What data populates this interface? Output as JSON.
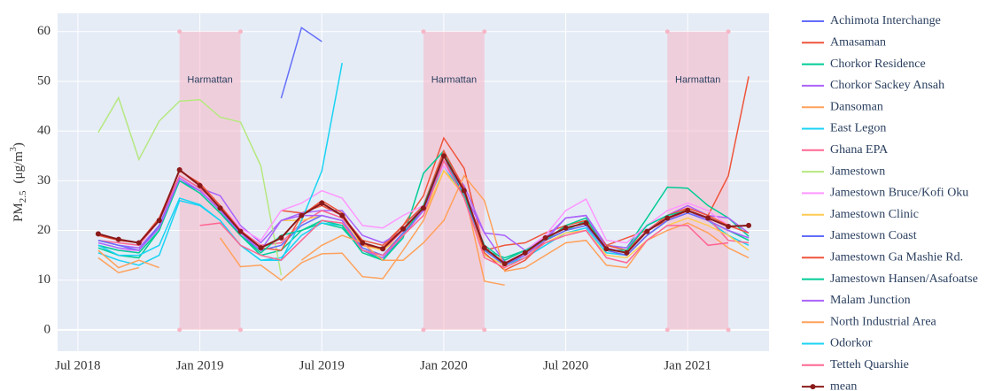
{
  "chart_data": {
    "type": "line",
    "ylabel": [
      "PM",
      "2.5",
      "(μg/m",
      "3",
      ")"
    ],
    "x": [
      "2018-08",
      "2018-09",
      "2018-10",
      "2018-11",
      "2018-12",
      "2019-01",
      "2019-02",
      "2019-03",
      "2019-04",
      "2019-05",
      "2019-06",
      "2019-07",
      "2019-08",
      "2019-09",
      "2019-10",
      "2019-11",
      "2019-12",
      "2020-01",
      "2020-02",
      "2020-03",
      "2020-04",
      "2020-05",
      "2020-06",
      "2020-07",
      "2020-08",
      "2020-09",
      "2020-10",
      "2020-11",
      "2020-12",
      "2021-01",
      "2021-02",
      "2021-03",
      "2021-04"
    ],
    "xlim": [
      "2018-06",
      "2021-05"
    ],
    "xticks": [
      {
        "value": "2018-07",
        "label": "Jul 2018"
      },
      {
        "value": "2019-01",
        "label": "Jan 2019"
      },
      {
        "value": "2019-07",
        "label": "Jul 2019"
      },
      {
        "value": "2020-01",
        "label": "Jan 2020"
      },
      {
        "value": "2020-07",
        "label": "Jul 2020"
      },
      {
        "value": "2021-01",
        "label": "Jan 2021"
      }
    ],
    "ylim": [
      -4.3,
      63.7
    ],
    "yticks": [
      0,
      10,
      20,
      30,
      40,
      50,
      60
    ],
    "grid": true,
    "bands": [
      {
        "label": "Harmattan",
        "start": "2018-12",
        "end": "2019-03",
        "yrange": [
          0,
          60
        ]
      },
      {
        "label": "Harmattan",
        "start": "2019-12",
        "end": "2020-03",
        "yrange": [
          0,
          60
        ]
      },
      {
        "label": "Harmattan",
        "start": "2020-12",
        "end": "2021-03",
        "yrange": [
          0,
          60
        ]
      }
    ],
    "series": [
      {
        "name": "Achimota Interchange",
        "color": "#636efa",
        "values": [
          null,
          null,
          null,
          null,
          null,
          null,
          null,
          null,
          null,
          46.6,
          60.8,
          58,
          null,
          null,
          null,
          null,
          null,
          null,
          null,
          null,
          null,
          null,
          null,
          null,
          null,
          null,
          null,
          null,
          null,
          null,
          null,
          null,
          null
        ]
      },
      {
        "name": "Amasaman",
        "color": "#ef553b",
        "values": [
          null,
          null,
          null,
          null,
          null,
          null,
          null,
          null,
          null,
          24,
          23.5,
          25,
          23,
          18,
          17,
          21,
          27,
          38.6,
          32.5,
          16,
          17,
          17.5,
          19.5,
          21,
          22,
          17,
          18.5,
          20,
          22,
          24.5,
          23,
          31,
          51
        ]
      },
      {
        "name": "Chorkor Residence",
        "color": "#00cc96",
        "values": [
          16.5,
          15,
          14.5,
          20,
          31,
          28.5,
          24,
          19,
          15,
          16,
          20,
          21.5,
          20.5,
          16,
          14,
          18.5,
          31.5,
          36,
          27,
          16,
          14.5,
          16,
          18,
          20,
          22,
          17,
          16.5,
          22.5,
          28.7,
          28.5,
          25,
          22.5,
          18.8
        ]
      },
      {
        "name": "Chorkor Sackey Ansah",
        "color": "#ab63fa",
        "values": [
          18,
          17,
          16.5,
          21,
          31,
          28.5,
          27,
          21,
          17.5,
          22,
          23.5,
          24,
          24,
          19,
          17.5,
          20,
          25,
          34,
          29,
          19.5,
          19,
          16,
          18.5,
          22.5,
          23,
          17,
          16.5,
          21,
          23,
          25,
          23,
          22.5,
          19.5
        ]
      },
      {
        "name": "Dansoman",
        "color": "#ffa15a",
        "values": [
          14.5,
          11.5,
          12.5,
          null,
          null,
          null,
          18.5,
          12.7,
          13,
          10,
          13.5,
          15.3,
          15.4,
          10.7,
          10.3,
          16,
          22,
          32,
          28,
          9.8,
          9,
          null,
          null,
          null,
          null,
          null,
          null,
          null,
          null,
          null,
          null,
          null,
          null
        ]
      },
      {
        "name": "East Legon",
        "color": "#19d3f3",
        "values": [
          15.5,
          14,
          13,
          15,
          26,
          25,
          22,
          17,
          14,
          14.5,
          19,
          21.5,
          21,
          16,
          15,
          19.5,
          24,
          33,
          27,
          15,
          13,
          14.5,
          17,
          19.5,
          20.5,
          15.5,
          15,
          19,
          22,
          24,
          22,
          19,
          17
        ]
      },
      {
        "name": "Ghana EPA",
        "color": "#ff6692",
        "values": [
          18,
          17.5,
          17,
          22,
          31,
          28.5,
          24,
          20,
          17,
          17.5,
          21.5,
          24,
          22.5,
          17.5,
          16,
          20,
          24,
          34,
          28,
          16.5,
          13.5,
          15.5,
          18,
          20,
          21,
          16,
          15,
          19,
          22,
          24,
          22.5,
          18,
          17.5
        ]
      },
      {
        "name": "Jamestown",
        "color": "#b6e880",
        "values": [
          39.7,
          46.7,
          34.3,
          42,
          46,
          46.3,
          42.8,
          41.8,
          33,
          11,
          null,
          null,
          null,
          null,
          null,
          null,
          null,
          null,
          null,
          null,
          null,
          null,
          null,
          null,
          null,
          null,
          null,
          null,
          null,
          null,
          null,
          null,
          null
        ]
      },
      {
        "name": "Jamestown Bruce/Kofi Oku",
        "color": "#ff97ff",
        "values": [
          17,
          16,
          16,
          21,
          30,
          28,
          25,
          20.5,
          18,
          24,
          25.5,
          28,
          26.5,
          21,
          20.5,
          23,
          25,
          33,
          28,
          17,
          14,
          16,
          19,
          24,
          26.3,
          18,
          17.5,
          21,
          24,
          25.5,
          24,
          21,
          19.5
        ]
      },
      {
        "name": "Jamestown Clinic",
        "color": "#fecb52",
        "values": [
          null,
          null,
          null,
          null,
          null,
          null,
          null,
          null,
          null,
          22,
          22,
          23,
          22,
          17,
          16,
          19,
          23,
          32,
          27,
          15,
          13,
          15,
          17.5,
          19.5,
          20,
          15,
          14.5,
          18,
          21,
          22.5,
          21,
          19,
          16
        ]
      },
      {
        "name": "Jamestown Coast",
        "color": "#636efa",
        "values": [
          18,
          17,
          16,
          21,
          30,
          28,
          24,
          19,
          16,
          17,
          21,
          23,
          22,
          16.5,
          15,
          19.5,
          24,
          34,
          27,
          16,
          13,
          15,
          18,
          20,
          21,
          16,
          15,
          19,
          22,
          23.5,
          22,
          20,
          18.5
        ]
      },
      {
        "name": "Jamestown Ga Mashie Rd.",
        "color": "#ef553b",
        "values": [
          19,
          18,
          17.5,
          22.5,
          32,
          29.5,
          25,
          20,
          16.5,
          16,
          23,
          26,
          23.5,
          17,
          16.5,
          21,
          25,
          36,
          28.5,
          15.5,
          12,
          14,
          18,
          21,
          22,
          17,
          16,
          20,
          23,
          24.5,
          23,
          21,
          19.5
        ]
      },
      {
        "name": "Jamestown Hansen/Asafoatse",
        "color": "#00cc96",
        "values": [
          17,
          16,
          15.5,
          20,
          30,
          27.5,
          23.5,
          19,
          15.5,
          19,
          20,
          22,
          21,
          15.5,
          14,
          19,
          25,
          35,
          27,
          17,
          14,
          16,
          18,
          21,
          22.5,
          16,
          16,
          21,
          23,
          24,
          22,
          20,
          18
        ]
      },
      {
        "name": "Malam Junction",
        "color": "#ab63fa",
        "values": [
          17.5,
          16.5,
          16,
          20.5,
          30.5,
          28,
          24,
          19.5,
          16,
          22,
          23,
          23,
          22,
          16,
          14.5,
          19,
          24,
          35,
          27.5,
          19.5,
          13.5,
          15,
          18,
          22.5,
          23,
          16.5,
          15.5,
          20,
          22.5,
          24,
          22,
          20,
          18.5
        ]
      },
      {
        "name": "North Industrial Area",
        "color": "#ffa15a",
        "values": [
          16,
          12.5,
          14,
          12.5,
          null,
          null,
          null,
          null,
          null,
          null,
          14,
          17,
          19,
          17.5,
          14,
          14,
          17.5,
          22,
          31,
          26,
          11.8,
          12.5,
          15,
          17.5,
          18,
          13,
          12.5,
          18,
          20,
          21.5,
          19.5,
          16.5,
          14.5
        ]
      },
      {
        "name": "Odorkor",
        "color": "#19d3f3",
        "values": [
          17,
          15,
          15,
          17,
          26.5,
          25.2,
          22,
          17,
          14,
          14,
          22,
          32,
          53.7,
          null,
          null,
          null,
          null,
          null,
          null,
          null,
          null,
          null,
          null,
          null,
          null,
          null,
          null,
          null,
          null,
          null,
          null,
          null,
          null
        ]
      },
      {
        "name": "Tetteh Quarshie",
        "color": "#ff6692",
        "values": [
          null,
          null,
          null,
          null,
          null,
          21,
          21.5,
          17,
          15,
          14,
          18,
          22,
          21.5,
          16,
          15,
          19,
          23,
          34,
          26.5,
          14.5,
          12.5,
          14.5,
          17.5,
          19,
          20,
          14.5,
          13.5,
          18,
          21,
          21,
          17,
          17.5,
          null
        ]
      },
      {
        "name": "mean",
        "color": "#8b1a1a",
        "marker": true,
        "values": [
          19.3,
          18.2,
          17.5,
          22,
          32.2,
          29,
          24.5,
          19.8,
          16.5,
          18.5,
          23,
          25.5,
          23,
          17.5,
          16.3,
          20.3,
          24.5,
          35,
          28,
          16.5,
          13.3,
          15.5,
          18.5,
          20.5,
          21.5,
          16.3,
          15.5,
          19.8,
          22.5,
          24,
          22.5,
          20.8,
          21
        ]
      }
    ]
  }
}
